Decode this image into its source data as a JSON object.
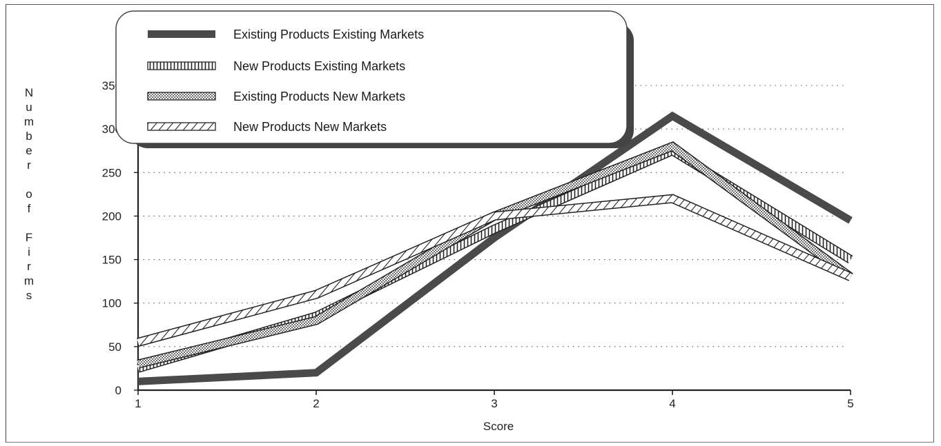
{
  "chart_data": {
    "type": "line",
    "xlabel": "Score",
    "ylabel": "Number of Firms",
    "x": [
      1,
      2,
      3,
      4,
      5
    ],
    "xlim": [
      1,
      5
    ],
    "ylim": [
      0,
      350
    ],
    "yticks": [
      0,
      50,
      100,
      150,
      200,
      250,
      300,
      350
    ],
    "grid": true,
    "legend_position": "top-left",
    "series": [
      {
        "name": "Existing Products Existing Markets",
        "values": [
          10,
          20,
          175,
          315,
          195
        ],
        "pattern": "solid",
        "color": "#4a4a4a"
      },
      {
        "name": "New Products Existing Markets",
        "values": [
          25,
          85,
          185,
          275,
          150
        ],
        "pattern": "vertical-stripes",
        "color": "#222222"
      },
      {
        "name": "Existing Products New Markets",
        "values": [
          30,
          80,
          200,
          280,
          130
        ],
        "pattern": "dots",
        "color": "#333333"
      },
      {
        "name": "New Products New Markets",
        "values": [
          55,
          110,
          200,
          220,
          130
        ],
        "pattern": "diagonal-hatch",
        "color": "#222222"
      }
    ]
  }
}
